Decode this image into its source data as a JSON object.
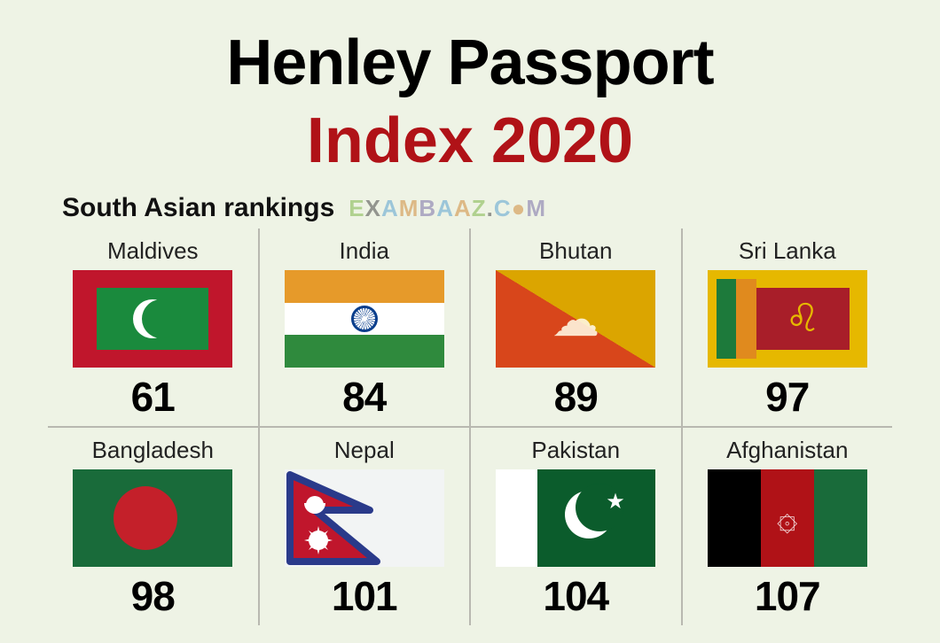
{
  "title": {
    "line1": "Henley Passport",
    "line2": "Index 2020",
    "line2_color": "#b01217"
  },
  "section_label": "South Asian rankings",
  "watermark": {
    "segments": [
      {
        "t": "E",
        "c": "#7fb74a"
      },
      {
        "t": "X",
        "c": "#4a4a4a"
      },
      {
        "t": "A",
        "c": "#5aa3d0"
      },
      {
        "t": "M",
        "c": "#d08a3a"
      },
      {
        "t": "B",
        "c": "#7a6fa8"
      },
      {
        "t": "A",
        "c": "#5aa3d0"
      },
      {
        "t": "A",
        "c": "#d08a3a"
      },
      {
        "t": "Z",
        "c": "#7fb74a"
      },
      {
        "t": ".",
        "c": "#4a4a4a"
      },
      {
        "t": "C",
        "c": "#5aa3d0"
      },
      {
        "t": "●",
        "c": "#d08a3a"
      },
      {
        "t": "M",
        "c": "#7a6fa8"
      }
    ]
  },
  "flag_colors": {
    "india": {
      "saffron": "#e69a2a",
      "white": "#ffffff",
      "green": "#2f8a3d"
    },
    "srilanka": {
      "border": "#e6b800"
    },
    "afghanistan": {
      "black": "#000000",
      "red": "#b01217",
      "green": "#196b3a"
    }
  },
  "grid": [
    [
      {
        "country": "Maldives",
        "rank": "61",
        "flag": "mv"
      },
      {
        "country": "India",
        "rank": "84",
        "flag": "in"
      },
      {
        "country": "Bhutan",
        "rank": "89",
        "flag": "bt"
      },
      {
        "country": "Sri Lanka",
        "rank": "97",
        "flag": "lk"
      }
    ],
    [
      {
        "country": "Bangladesh",
        "rank": "98",
        "flag": "bd"
      },
      {
        "country": "Nepal",
        "rank": "101",
        "flag": "np"
      },
      {
        "country": "Pakistan",
        "rank": "104",
        "flag": "pk"
      },
      {
        "country": "Afghanistan",
        "rank": "107",
        "flag": "af"
      }
    ]
  ]
}
